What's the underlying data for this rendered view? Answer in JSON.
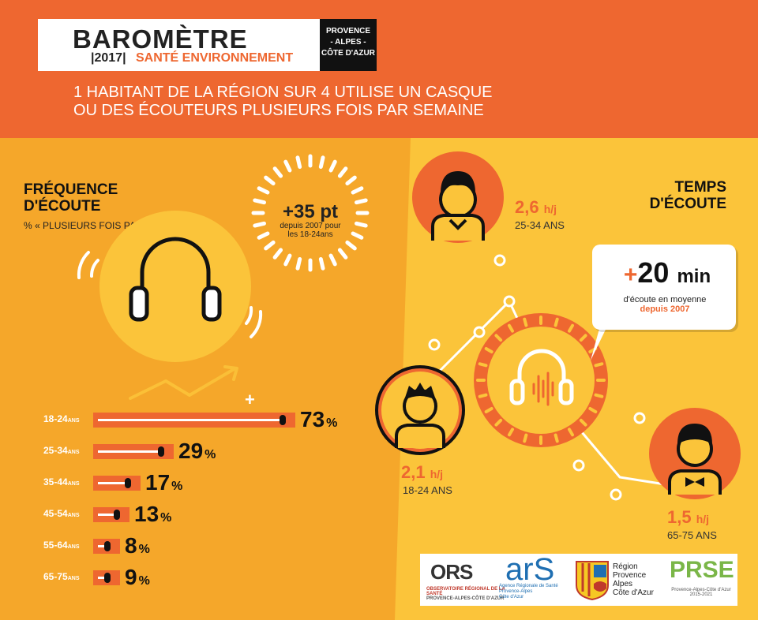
{
  "header": {
    "brand_title": "BAROMÈTRE",
    "brand_year": "|2017|",
    "brand_subtitle": "SANTÉ ENVIRONNEMENT",
    "region_lines": [
      "PROVENCE",
      "- ALPES -",
      "CÔTE D'AZUR"
    ],
    "headline_lines": [
      "1 HABITANT DE LA RÉGION SUR 4 UTILISE UN CASQUE",
      "OU DES ÉCOUTEURS PLUSIEURS FOIS PAR SEMAINE"
    ]
  },
  "frequence": {
    "title_lines": [
      "FRÉQUENCE",
      "D'ÉCOUTE"
    ],
    "subtitle": "% « PLUSIEURS FOIS PAR SEMAINE »",
    "stat_big": "+35 pt",
    "stat_small_lines": [
      "depuis 2007 pour",
      "les 18-24ans"
    ],
    "plus_sign": "+",
    "pct_sign": "%",
    "age_unit": "ANS",
    "rows": [
      {
        "age": "18-24",
        "value": 73
      },
      {
        "age": "25-34",
        "value": 29
      },
      {
        "age": "35-44",
        "value": 17
      },
      {
        "age": "45-54",
        "value": 13
      },
      {
        "age": "55-64",
        "value": 8
      },
      {
        "age": "65-75",
        "value": 9
      }
    ]
  },
  "temps": {
    "title_lines": [
      "TEMPS",
      "D'ÉCOUTE"
    ],
    "unit": "h/j",
    "groups": [
      {
        "value": "2,6",
        "age": "25-34 ANS"
      },
      {
        "value": "2,1",
        "age": "18-24 ANS"
      },
      {
        "value": "1,5",
        "age": "65-75 ANS"
      }
    ],
    "bubble": {
      "plus": "+",
      "value": "20",
      "unit": "min",
      "line1": "d'écoute en moyenne",
      "line2": "depuis 2007"
    }
  },
  "logos": {
    "ors": "ORS",
    "ors_sub_lines": [
      "OBSERVATOIRE RÉGIONAL DE LA SANTÉ",
      "PROVENCE-ALPES-CÔTE D'AZUR"
    ],
    "ars": "arS",
    "ars_sub_lines": [
      "Agence Régionale de Santé",
      "Provence-Alpes",
      "Côte d'Azur"
    ],
    "region_lines": [
      "Région",
      "Provence",
      "Alpes",
      "Côte d'Azur"
    ],
    "prse": "PRSE",
    "prse_sub_lines": [
      "Provence-Alpes-Côte d'Azur",
      "2015-2021"
    ]
  },
  "colors": {
    "orange": "#ee6730",
    "yellow_dark": "#f5a72a",
    "yellow_light": "#fbc43a",
    "black": "#111111"
  }
}
